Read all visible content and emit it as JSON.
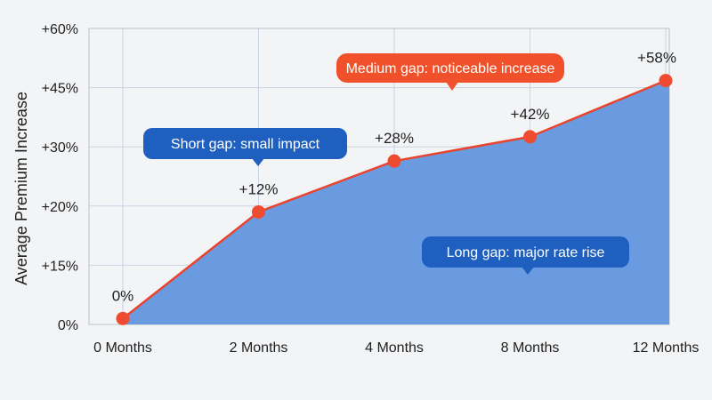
{
  "chart_data": {
    "type": "area",
    "title": "",
    "xlabel": "",
    "ylabel": "Average Premium Increase",
    "categories": [
      "0 Months",
      "2 Months",
      "4 Months",
      "8 Months",
      "12 Months"
    ],
    "y_tick_labels": [
      "0%",
      "+15%",
      "+20%",
      "+30%",
      "+45%",
      "+60%"
    ],
    "series": [
      {
        "values": [
          0,
          12,
          28,
          42,
          58
        ],
        "data_labels": [
          "0%",
          "+12%",
          "+28%",
          "+42%",
          "+58%"
        ],
        "plotted_positions": [
          0.1,
          1.9,
          2.76,
          3.17,
          4.12
        ]
      }
    ],
    "grid": true,
    "colors": {
      "area": "#6a9be0",
      "line": "#e8442e",
      "point": "#ef4b30",
      "callout_blue": "#1f5fbf",
      "callout_orange": "#f0502a",
      "grid": "#c9d4e6",
      "background": "#f3f4f6"
    },
    "annotations": [
      {
        "text": "Short gap: small impact",
        "style": "blue"
      },
      {
        "text": "Medium gap: noticeable increase",
        "style": "orange"
      },
      {
        "text": "Long gap: major rate rise",
        "style": "blue"
      }
    ]
  }
}
